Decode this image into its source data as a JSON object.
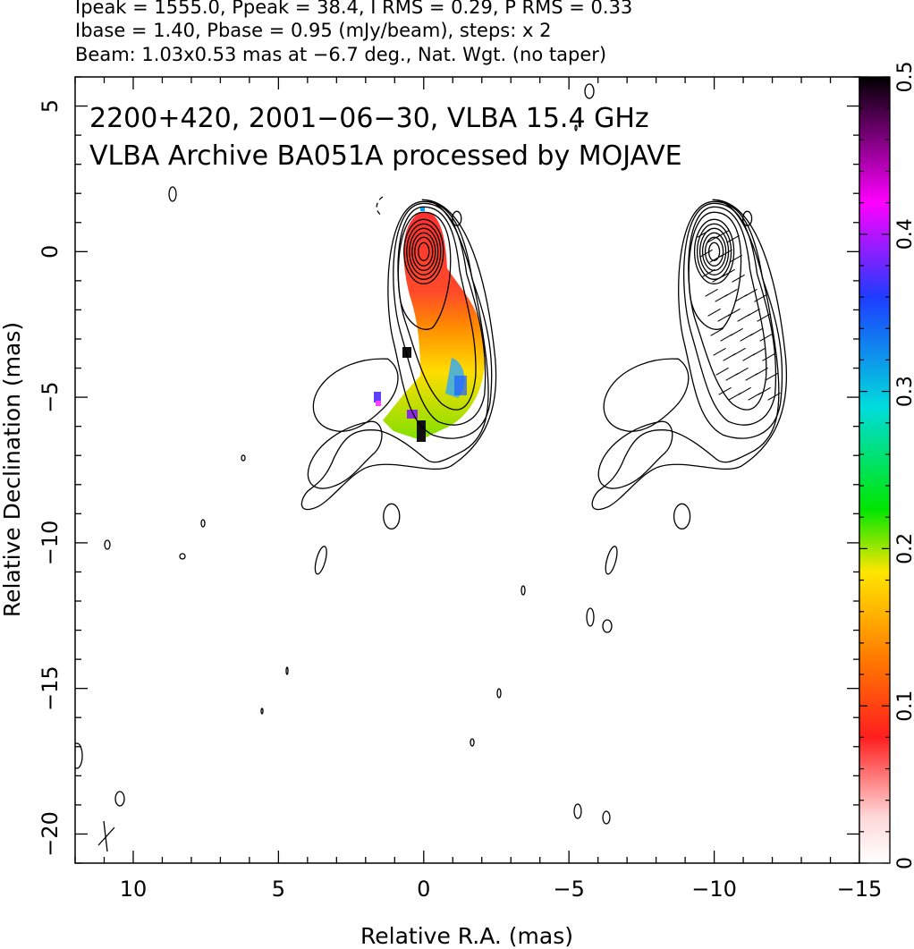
{
  "header": {
    "line1": "Ipeak = 1555.0, Ppeak = 38.4, I RMS = 0.29, P RMS = 0.33",
    "line2": "Ibase = 1.40, Pbase = 0.95 (mJy/beam), steps: x 2",
    "line3": "Beam: 1.03x0.53 mas at −6.7 deg., Nat. Wgt. (no taper)"
  },
  "chart_data": {
    "type": "heatmap",
    "title": "2200+420, 2001−06−30, VLBA 15.4 GHz",
    "subtitle": "VLBA Archive BA051A processed by MOJAVE",
    "xlabel": "Relative R.A. (mas)",
    "ylabel": "Relative Declination (mas)",
    "xlim": [
      12,
      -15
    ],
    "ylim": [
      -21,
      6
    ],
    "x_ticks": [
      10,
      5,
      0,
      -5,
      -10,
      -15
    ],
    "x_tick_labels": [
      "10",
      "5",
      "0",
      "−5",
      "−10",
      "−15"
    ],
    "y_ticks": [
      5,
      0,
      -5,
      -10,
      -15,
      -20
    ],
    "y_tick_labels": [
      "5",
      "0",
      "−5",
      "−10",
      "−15",
      "−20"
    ],
    "colorbar": {
      "range": [
        0,
        0.5
      ],
      "ticks": [
        0,
        0.1,
        0.2,
        0.3,
        0.4,
        0.5
      ],
      "tick_labels": [
        "0",
        "0.1",
        "0.2",
        "0.3",
        "0.4",
        "0.5"
      ],
      "colors": [
        "#ffffff",
        "#ff1e1e",
        "#ff8c00",
        "#ffe600",
        "#00e600",
        "#00dcdc",
        "#1e3cff",
        "#ff00ff",
        "#000000"
      ]
    },
    "panels": [
      {
        "name": "total intensity contours with fractional polarization color",
        "core": [
          0,
          0
        ]
      },
      {
        "name": "total intensity contours with EVPA ticks",
        "core": [
          -10,
          0
        ]
      }
    ],
    "peak_intensity_mJy_per_beam": 1555.0,
    "peak_polarized_mJy_per_beam": 38.4,
    "contour_base_mJy_per_beam": 1.4,
    "contour_step_factor": 2
  }
}
